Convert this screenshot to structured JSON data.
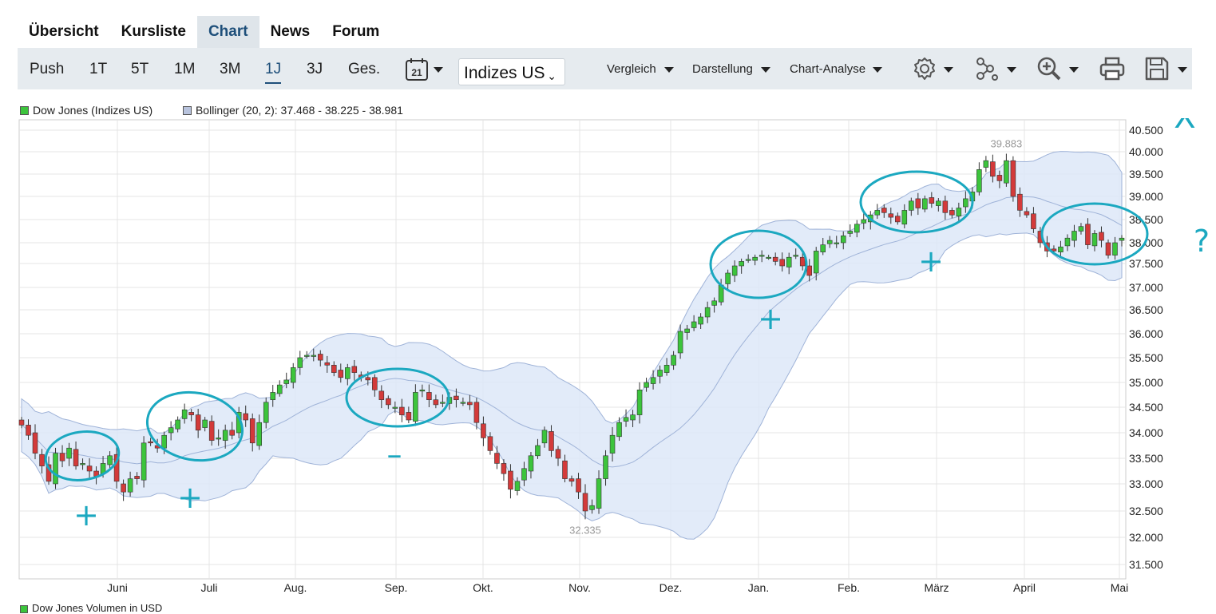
{
  "tabs": [
    "Übersicht",
    "Kursliste",
    "Chart",
    "News",
    "Forum"
  ],
  "active_tab": "Chart",
  "periods": [
    "Push",
    "1T",
    "5T",
    "1M",
    "3M",
    "1J",
    "3J",
    "Ges."
  ],
  "active_period": "1J",
  "calendar_day": "21",
  "market_select": "Indizes US",
  "menus": {
    "compare": "Vergleich",
    "display": "Darstellung",
    "analysis": "Chart-Analyse"
  },
  "legend": {
    "series1": "Dow Jones (Indizes US)",
    "series2": "Bollinger (20, 2): 37.468 - 38.225 - 38.981",
    "volume": "Dow Jones Volumen in USD"
  },
  "colors": {
    "up": "#3cc43c",
    "down": "#d33a3a",
    "band": "#dde7f8",
    "band_line": "#9fb3d8",
    "annotation": "#1ba8c0"
  },
  "annotations": {
    "marks": [
      "+",
      "+",
      "–",
      "+",
      "+",
      "?"
    ],
    "cross": "X"
  },
  "chart_data": {
    "type": "candlestick",
    "title": "",
    "xlabel": "",
    "ylabel": "",
    "ylim": [
      31200,
      40800
    ],
    "y_ticks": [
      "40.500",
      "40.000",
      "39.500",
      "39.000",
      "38.500",
      "38.000",
      "37.500",
      "37.000",
      "36.500",
      "36.000",
      "35.500",
      "35.000",
      "34.500",
      "34.000",
      "33.500",
      "33.000",
      "32.500",
      "32.000",
      "31.500"
    ],
    "x_ticks": [
      "Juni",
      "Juli",
      "Aug.",
      "Sep.",
      "Okt.",
      "Nov.",
      "Dez.",
      "Jan.",
      "Feb.",
      "März",
      "April",
      "Mai"
    ],
    "high_label": "39.883",
    "low_label": "32.335",
    "close": [
      34150,
      33950,
      33600,
      33350,
      33050,
      33600,
      33450,
      33700,
      33350,
      33400,
      33250,
      33150,
      33400,
      33550,
      33050,
      32850,
      33100,
      33100,
      33800,
      33800,
      33700,
      33950,
      34100,
      34250,
      34450,
      34350,
      34050,
      34250,
      33850,
      33900,
      34050,
      33950,
      34400,
      34250,
      33800,
      34200,
      34600,
      34800,
      34950,
      35050,
      35300,
      35500,
      35550,
      35550,
      35450,
      35350,
      35200,
      35100,
      35300,
      35200,
      35100,
      35050,
      34850,
      34650,
      34550,
      34500,
      34350,
      34250,
      34800,
      34850,
      34650,
      34550,
      34600,
      34700,
      34650,
      34600,
      34550,
      34200,
      33900,
      33650,
      33400,
      33200,
      32900,
      33050,
      33300,
      33550,
      33750,
      34050,
      33650,
      33500,
      33100,
      33050,
      32850,
      32500,
      32600,
      33100,
      33550,
      33950,
      34200,
      34300,
      34350,
      34850,
      35000,
      35100,
      35250,
      35350,
      35550,
      36050,
      36100,
      36250,
      36350,
      36550,
      36700,
      37050,
      37300,
      37450,
      37550,
      37600,
      37650,
      37700,
      37650,
      37550,
      37450,
      37650,
      37700,
      37450,
      37250,
      37800,
      37950,
      38050,
      38000,
      38150,
      38250,
      38400,
      38500,
      38600,
      38700,
      38650,
      38550,
      38450,
      38700,
      38900,
      38750,
      38950,
      38850,
      38900,
      38650,
      38600,
      38750,
      38950,
      39100,
      39600,
      39800,
      39450,
      39350,
      39800,
      39000,
      38700,
      38600,
      38300,
      38000,
      37800,
      37800,
      37900,
      38100,
      38250,
      38350,
      37950,
      38200,
      38050,
      37700,
      38000,
      38100
    ]
  }
}
